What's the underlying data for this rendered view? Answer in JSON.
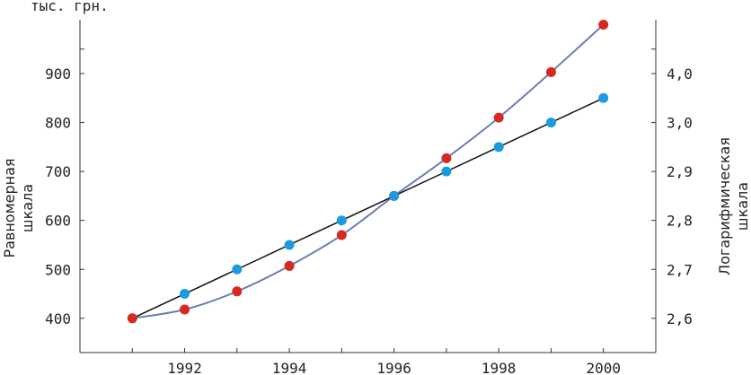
{
  "chart_data": {
    "type": "line",
    "unit_label": "тыс. грн.",
    "left_axis_title": [
      "Равномерная",
      "шкала"
    ],
    "right_axis_title": [
      "Логарифмическая",
      "шкала"
    ],
    "x": [
      1991,
      1992,
      1993,
      1994,
      1995,
      1996,
      1997,
      1998,
      1999,
      2000
    ],
    "x_tick_labels": [
      "1992",
      "1994",
      "1996",
      "1998",
      "2000"
    ],
    "xlim": [
      1990,
      2001
    ],
    "ylim": [
      330,
      1010
    ],
    "y_tick_labels": [
      "400",
      "500",
      "600",
      "700",
      "800",
      "900"
    ],
    "y2_tick_labels": [
      "2,6",
      "2,7",
      "2,8",
      "2,9",
      "3,0",
      "4,0"
    ],
    "series": [
      {
        "axis": "left-uniform",
        "color": "#1a9be0",
        "line_color": "#111111",
        "values": [
          400,
          450,
          500,
          550,
          600,
          650,
          700,
          750,
          800,
          850
        ]
      },
      {
        "axis": "right-log",
        "color": "#d42a22",
        "line_color": "#6b7db3",
        "values": [
          400,
          418,
          455,
          507,
          570,
          650,
          727,
          810,
          903,
          1000
        ]
      }
    ],
    "grid": false
  }
}
